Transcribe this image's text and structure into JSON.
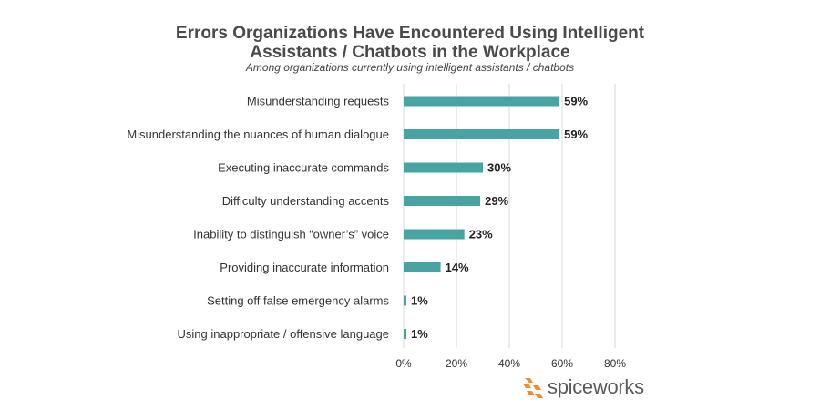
{
  "chart_data": {
    "type": "bar",
    "orientation": "horizontal",
    "title_line1": "Errors Organizations Have Encountered Using Intelligent",
    "title_line2": "Assistants / Chatbots in the Workplace",
    "subtitle": "Among organizations currently using intelligent assistants / chatbots",
    "categories": [
      "Misunderstanding requests",
      "Misunderstanding the nuances of human dialogue",
      "Executing inaccurate commands",
      "Difficulty understanding accents",
      "Inability to distinguish “owner’s” voice",
      "Providing inaccurate information",
      "Setting off false emergency alarms",
      "Using inappropriate / offensive language"
    ],
    "values": [
      59,
      59,
      30,
      29,
      23,
      14,
      1,
      1
    ],
    "value_labels": [
      "59%",
      "59%",
      "30%",
      "29%",
      "23%",
      "14%",
      "1%",
      "1%"
    ],
    "xlim": [
      0,
      80
    ],
    "ticks": [
      0,
      20,
      40,
      60,
      80
    ],
    "tick_labels": [
      "0%",
      "20%",
      "40%",
      "60%",
      "80%"
    ],
    "grid": true,
    "legend": "none",
    "bar_color": "#4aa3a3",
    "grid_color": "#d9d9d9"
  },
  "brand": {
    "name": "spiceworks",
    "logo_color": "#f28c28"
  }
}
